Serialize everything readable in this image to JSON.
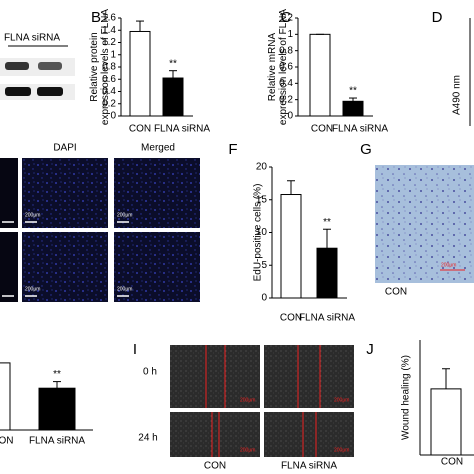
{
  "chart_data": [
    {
      "type": "bar",
      "panel": "B",
      "y_label": [
        "Relative protein",
        "expression levels of FLNA"
      ],
      "categories": [
        "CON",
        "FLNA siRNA"
      ],
      "values": [
        1.38,
        0.62
      ],
      "errors": [
        0.17,
        0.12
      ],
      "colors": [
        "#ffffff",
        "#000000"
      ],
      "ylim": [
        0,
        1.6
      ],
      "yticks": [
        0,
        0.2,
        0.4,
        0.6,
        0.8,
        1,
        1.2,
        1.4,
        1.6
      ],
      "annotation": "**"
    },
    {
      "type": "bar",
      "panel": "C",
      "y_label": [
        "Relative mRNA",
        "expression levels of FLNA"
      ],
      "categories": [
        "CON",
        "FLNA siRNA"
      ],
      "values": [
        1.0,
        0.18
      ],
      "errors": [
        0,
        0.04
      ],
      "colors": [
        "#ffffff",
        "#000000"
      ],
      "ylim": [
        0,
        1.2
      ],
      "yticks": [
        0,
        0.2,
        0.4,
        0.6,
        0.8,
        1,
        1.2
      ],
      "annotation": "**"
    },
    {
      "type": "bar",
      "panel": "F",
      "y_label": [
        "EdU-positive cells (%)"
      ],
      "categories": [
        "CON",
        "FLNA siRNA"
      ],
      "values": [
        15.8,
        7.6
      ],
      "errors": [
        2.1,
        2.9
      ],
      "colors": [
        "#ffffff",
        "#000000"
      ],
      "ylim": [
        0,
        20
      ],
      "yticks": [
        0,
        5,
        10,
        15,
        20
      ],
      "annotation": "**"
    },
    {
      "type": "bar",
      "panel": "J",
      "y_label": [
        "Wound healing (%)"
      ],
      "categories": [
        "CON"
      ],
      "values": [
        0.46
      ],
      "errors": [
        0.14
      ],
      "colors": [
        "#ffffff"
      ],
      "ylim": [
        0,
        0.8
      ]
    },
    {
      "type": "bar",
      "categories": [
        "ON",
        "FLNA siRNA"
      ],
      "values": [
        0.61,
        0.38
      ],
      "errors": [
        0,
        0.06
      ],
      "colors": [
        "#ffffff",
        "#000000"
      ],
      "ylim": [
        0,
        1
      ],
      "annotation": "**"
    }
  ],
  "figure": {
    "blot": {
      "label": "FLNA siRNA"
    },
    "panel_D": {
      "label": "D",
      "axis_title": "A490 nm"
    },
    "panel_E": {
      "columns": [
        "DAPI",
        "Merged"
      ],
      "scale_bar": "200μm"
    },
    "panel_G": {
      "label": "G",
      "caption": "CON",
      "scale_bar": "200μm"
    },
    "panel_I": {
      "label": "I",
      "rows": [
        "0 h",
        "24 h"
      ],
      "columns": [
        "CON",
        "FLNA siRNA"
      ],
      "scale_bar": "200μm"
    }
  }
}
